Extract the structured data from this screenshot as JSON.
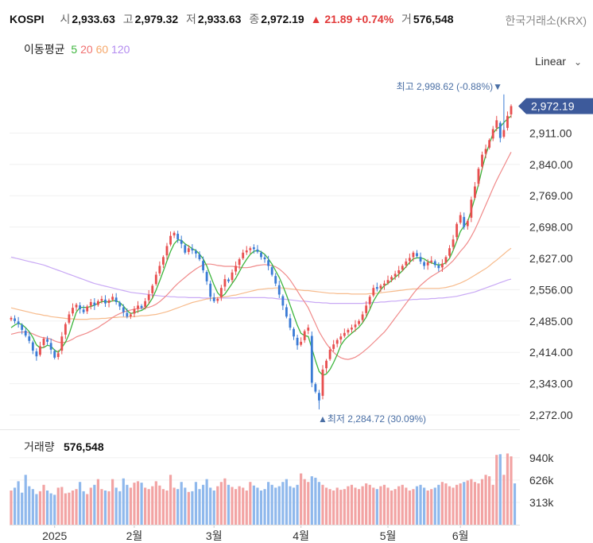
{
  "header": {
    "symbol": "KOSPI",
    "open_label": "시",
    "open": "2,933.63",
    "high_label": "고",
    "high": "2,979.32",
    "low_label": "저",
    "low": "2,933.63",
    "close_label": "종",
    "close": "2,972.19",
    "change": "▲ 21.89",
    "change_pct": "+0.74%",
    "volume_label": "거",
    "volume": "576,548",
    "exchange": "한국거래소(KRX)"
  },
  "ma_legend": {
    "title": "이동평균",
    "items": [
      {
        "period": "5",
        "color": "#3db53d"
      },
      {
        "period": "20",
        "color": "#f07070"
      },
      {
        "period": "60",
        "color": "#f5a76a"
      },
      {
        "period": "120",
        "color": "#b48cf0"
      }
    ]
  },
  "scale_selector": {
    "label": "Linear",
    "icon": "chevron-down-icon"
  },
  "annotations": {
    "high": "최고 2,998.62 (-0.88%)▼",
    "low": "▲최저 2,284.72 (30.09%)"
  },
  "volume_panel": {
    "label": "거래량",
    "value": "576,548"
  },
  "colors": {
    "up": "#e84f4f",
    "down": "#3a7bd5",
    "current_price_bg": "#3d5a9b"
  },
  "chart_data": {
    "type": "candlestick",
    "title": "KOSPI",
    "current_price": 2972.19,
    "current_price_label": "2,972.19",
    "ylim": [
      2250,
      3020
    ],
    "y_ticks": [
      2911,
      2840,
      2769,
      2698,
      2627,
      2556,
      2485,
      2414,
      2343,
      2272
    ],
    "y_tick_labels": [
      "2,911.00",
      "2,840.00",
      "2,769.00",
      "2,698.00",
      "2,627.00",
      "2,556.00",
      "2,485.00",
      "2,414.00",
      "2,343.00",
      "2,272.00"
    ],
    "x_labels": [
      {
        "label": "2025",
        "index": 12
      },
      {
        "label": "2월",
        "index": 34
      },
      {
        "label": "3월",
        "index": 56
      },
      {
        "label": "4월",
        "index": 80
      },
      {
        "label": "5월",
        "index": 104
      },
      {
        "label": "6월",
        "index": 124
      }
    ],
    "highest": {
      "value": 2998.62,
      "index": 136
    },
    "lowest": {
      "value": 2284.72,
      "index": 85
    },
    "closes": [
      2492,
      2485,
      2478,
      2465,
      2452,
      2440,
      2418,
      2405,
      2428,
      2445,
      2438,
      2420,
      2402,
      2412,
      2450,
      2478,
      2500,
      2515,
      2522,
      2512,
      2505,
      2518,
      2528,
      2520,
      2530,
      2535,
      2525,
      2532,
      2540,
      2528,
      2518,
      2505,
      2495,
      2500,
      2512,
      2520,
      2515,
      2530,
      2545,
      2565,
      2590,
      2610,
      2630,
      2655,
      2678,
      2685,
      2670,
      2660,
      2640,
      2650,
      2645,
      2638,
      2625,
      2600,
      2575,
      2540,
      2530,
      2535,
      2560,
      2580,
      2575,
      2595,
      2610,
      2625,
      2640,
      2645,
      2650,
      2648,
      2642,
      2630,
      2625,
      2610,
      2590,
      2570,
      2545,
      2520,
      2495,
      2470,
      2450,
      2430,
      2438,
      2462,
      2470,
      2345,
      2325,
      2305,
      2375,
      2395,
      2420,
      2432,
      2442,
      2450,
      2458,
      2465,
      2470,
      2477,
      2485,
      2500,
      2520,
      2540,
      2560,
      2558,
      2565,
      2570,
      2578,
      2585,
      2592,
      2600,
      2610,
      2620,
      2628,
      2640,
      2632,
      2620,
      2610,
      2618,
      2622,
      2612,
      2605,
      2615,
      2630,
      2650,
      2670,
      2705,
      2725,
      2698,
      2712,
      2760,
      2790,
      2830,
      2862,
      2875,
      2895,
      2920,
      2940,
      2900,
      2918,
      2950,
      2972.19
    ],
    "ma5": [
      2470,
      2476,
      2480,
      2477,
      2470,
      2461,
      2448,
      2431,
      2424,
      2425,
      2430,
      2428,
      2419,
      2414,
      2425,
      2437,
      2455,
      2481,
      2505,
      2516,
      2516,
      2516,
      2518,
      2521,
      2525,
      2529,
      2529,
      2528,
      2531,
      2531,
      2527,
      2519,
      2509,
      2502,
      2504,
      2507,
      2509,
      2514,
      2524,
      2537,
      2555,
      2576,
      2598,
      2621,
      2643,
      2660,
      2669,
      2668,
      2660,
      2655,
      2649,
      2645,
      2637,
      2626,
      2610,
      2588,
      2567,
      2549,
      2540,
      2546,
      2558,
      2570,
      2582,
      2597,
      2612,
      2625,
      2636,
      2643,
      2645,
      2642,
      2636,
      2626,
      2614,
      2599,
      2584,
      2565,
      2544,
      2521,
      2498,
      2475,
      2457,
      2452,
      2450,
      2423,
      2395,
      2371,
      2362,
      2365,
      2375,
      2391,
      2409,
      2430,
      2442,
      2450,
      2457,
      2464,
      2471,
      2481,
      2494,
      2511,
      2530,
      2544,
      2556,
      2565,
      2570,
      2577,
      2584,
      2591,
      2599,
      2608,
      2618,
      2626,
      2628,
      2628,
      2626,
      2620,
      2617,
      2614,
      2612,
      2613,
      2617,
      2627,
      2645,
      2666,
      2688,
      2700,
      2710,
      2736,
      2764,
      2795,
      2830,
      2861,
      2887,
      2910,
      2921,
      2925,
      2935,
      2943,
      2950
    ],
    "ma20": [
      2455,
      2457,
      2459,
      2460,
      2460,
      2459,
      2456,
      2452,
      2449,
      2447,
      2446,
      2444,
      2440,
      2437,
      2436,
      2437,
      2440,
      2444,
      2449,
      2452,
      2455,
      2458,
      2462,
      2466,
      2470,
      2476,
      2481,
      2487,
      2493,
      2498,
      2502,
      2505,
      2508,
      2510,
      2512,
      2513,
      2514,
      2515,
      2516,
      2519,
      2523,
      2529,
      2536,
      2544,
      2553,
      2562,
      2570,
      2577,
      2584,
      2591,
      2597,
      2603,
      2608,
      2612,
      2614,
      2614,
      2613,
      2611,
      2610,
      2609,
      2609,
      2609,
      2608,
      2607,
      2606,
      2606,
      2607,
      2609,
      2611,
      2612,
      2613,
      2612,
      2611,
      2608,
      2603,
      2596,
      2588,
      2578,
      2566,
      2553,
      2540,
      2528,
      2515,
      2497,
      2479,
      2461,
      2447,
      2434,
      2423,
      2414,
      2407,
      2402,
      2399,
      2398,
      2400,
      2403,
      2408,
      2414,
      2421,
      2428,
      2436,
      2444,
      2452,
      2460,
      2470,
      2481,
      2492,
      2503,
      2514,
      2525,
      2536,
      2547,
      2557,
      2566,
      2573,
      2580,
      2586,
      2591,
      2596,
      2601,
      2607,
      2614,
      2622,
      2632,
      2643,
      2652,
      2663,
      2677,
      2692,
      2710,
      2729,
      2748,
      2767,
      2786,
      2804,
      2820,
      2836,
      2852,
      2868
    ],
    "ma60": [
      2515,
      2513,
      2511,
      2509,
      2507,
      2505,
      2503,
      2501,
      2500,
      2498,
      2497,
      2495,
      2494,
      2493,
      2492,
      2491,
      2490,
      2490,
      2489,
      2489,
      2489,
      2489,
      2490,
      2490,
      2490,
      2491,
      2491,
      2492,
      2493,
      2493,
      2494,
      2494,
      2494,
      2495,
      2495,
      2496,
      2497,
      2497,
      2498,
      2499,
      2500,
      2502,
      2504,
      2506,
      2509,
      2512,
      2515,
      2518,
      2521,
      2524,
      2527,
      2529,
      2531,
      2533,
      2535,
      2536,
      2537,
      2538,
      2539,
      2540,
      2541,
      2543,
      2544,
      2546,
      2548,
      2550,
      2552,
      2554,
      2556,
      2557,
      2558,
      2559,
      2559,
      2560,
      2560,
      2560,
      2559,
      2558,
      2557,
      2556,
      2555,
      2554,
      2554,
      2553,
      2552,
      2551,
      2550,
      2549,
      2548,
      2548,
      2547,
      2547,
      2547,
      2547,
      2546,
      2546,
      2546,
      2546,
      2546,
      2547,
      2547,
      2548,
      2549,
      2550,
      2551,
      2552,
      2553,
      2554,
      2555,
      2556,
      2557,
      2558,
      2558,
      2559,
      2559,
      2559,
      2559,
      2559,
      2559,
      2560,
      2561,
      2563,
      2565,
      2568,
      2571,
      2575,
      2579,
      2584,
      2589,
      2594,
      2599,
      2604,
      2610,
      2617,
      2623,
      2630,
      2637,
      2644,
      2650
    ],
    "ma120": [
      2630,
      2628,
      2626,
      2624,
      2622,
      2620,
      2618,
      2616,
      2614,
      2612,
      2609,
      2606,
      2603,
      2600,
      2597,
      2594,
      2591,
      2588,
      2585,
      2582,
      2579,
      2576,
      2573,
      2570,
      2568,
      2566,
      2564,
      2562,
      2560,
      2558,
      2556,
      2554,
      2552,
      2550,
      2549,
      2548,
      2547,
      2546,
      2545,
      2544,
      2543,
      2542,
      2541,
      2541,
      2540,
      2540,
      2539,
      2539,
      2539,
      2538,
      2538,
      2538,
      2538,
      2537,
      2537,
      2537,
      2537,
      2537,
      2537,
      2537,
      2537,
      2537,
      2537,
      2538,
      2538,
      2538,
      2538,
      2538,
      2538,
      2538,
      2538,
      2537,
      2537,
      2536,
      2535,
      2535,
      2534,
      2533,
      2532,
      2531,
      2530,
      2530,
      2529,
      2528,
      2527,
      2527,
      2526,
      2526,
      2525,
      2525,
      2525,
      2525,
      2525,
      2525,
      2525,
      2525,
      2525,
      2525,
      2526,
      2526,
      2527,
      2527,
      2528,
      2528,
      2529,
      2530,
      2530,
      2531,
      2532,
      2533,
      2533,
      2534,
      2534,
      2535,
      2535,
      2535,
      2536,
      2536,
      2537,
      2537,
      2538,
      2539,
      2540,
      2541,
      2543,
      2545,
      2547,
      2549,
      2551,
      2554,
      2557,
      2560,
      2563,
      2566,
      2569,
      2572,
      2575,
      2578,
      2580
    ],
    "volume_max": 1250000,
    "volume_ticks": [
      940000,
      626000,
      313000
    ],
    "volume_tick_labels": [
      "940k",
      "626k",
      "313k"
    ],
    "volumes": [
      480000,
      520000,
      610000,
      450000,
      700000,
      540000,
      500000,
      430000,
      470000,
      560000,
      480000,
      440000,
      420000,
      520000,
      530000,
      440000,
      450000,
      480000,
      500000,
      600000,
      470000,
      430000,
      520000,
      560000,
      640000,
      500000,
      480000,
      470000,
      640000,
      520000,
      470000,
      650000,
      560000,
      520000,
      590000,
      610000,
      590000,
      520000,
      500000,
      540000,
      610000,
      550000,
      500000,
      480000,
      700000,
      520000,
      500000,
      600000,
      520000,
      460000,
      470000,
      600000,
      500000,
      560000,
      640000,
      520000,
      480000,
      540000,
      600000,
      650000,
      560000,
      530000,
      500000,
      540000,
      520000,
      480000,
      600000,
      550000,
      520000,
      480000,
      500000,
      600000,
      560000,
      520000,
      540000,
      600000,
      640000,
      540000,
      520000,
      560000,
      720000,
      640000,
      600000,
      680000,
      660000,
      600000,
      560000,
      520000,
      500000,
      480000,
      520000,
      490000,
      500000,
      540000,
      560000,
      520000,
      500000,
      540000,
      580000,
      560000,
      520000,
      500000,
      540000,
      560000,
      520000,
      480000,
      500000,
      540000,
      560000,
      520000,
      480000,
      500000,
      540000,
      560000,
      520000,
      480000,
      500000,
      520000,
      560000,
      600000,
      580000,
      540000,
      520000,
      560000,
      580000,
      600000,
      620000,
      640000,
      600000,
      580000,
      640000,
      700000,
      680000,
      560000,
      980000,
      990000,
      700000,
      1000000,
      960000,
      580000
    ]
  }
}
